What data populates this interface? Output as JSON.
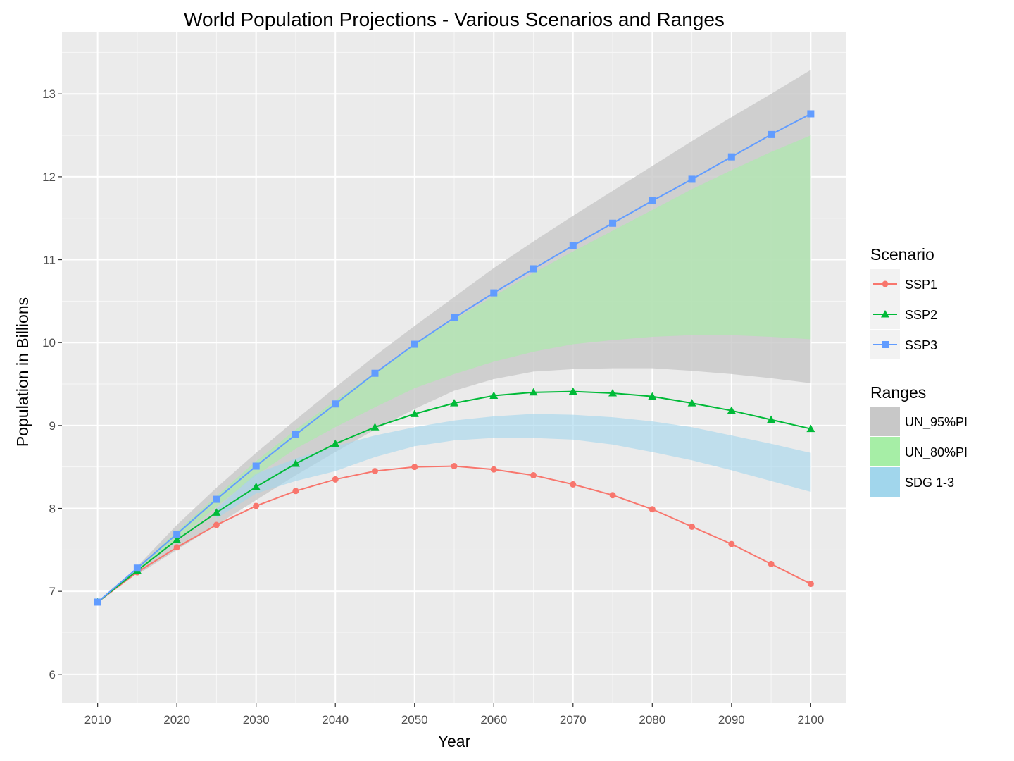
{
  "chart_data": {
    "type": "line",
    "title": "World Population Projections - Various Scenarios and Ranges",
    "xlabel": "Year",
    "ylabel": "Population in Billions",
    "xlim": [
      2005.5,
      2104.5
    ],
    "ylim": [
      5.65,
      13.75
    ],
    "x_ticks": [
      2010,
      2020,
      2030,
      2040,
      2050,
      2060,
      2070,
      2080,
      2090,
      2100
    ],
    "y_ticks": [
      6,
      7,
      8,
      9,
      10,
      11,
      12,
      13
    ],
    "grid": true,
    "legend_position": "right",
    "x": [
      2010,
      2015,
      2020,
      2025,
      2030,
      2035,
      2040,
      2045,
      2050,
      2055,
      2060,
      2065,
      2070,
      2075,
      2080,
      2085,
      2090,
      2095,
      2100
    ],
    "series": [
      {
        "name": "SSP1",
        "color": "#F8766D",
        "marker": "circle",
        "values": [
          6.87,
          7.23,
          7.53,
          7.8,
          8.03,
          8.21,
          8.35,
          8.45,
          8.5,
          8.51,
          8.47,
          8.4,
          8.29,
          8.16,
          7.99,
          7.78,
          7.57,
          7.33,
          7.09
        ]
      },
      {
        "name": "SSP2",
        "color": "#00BA38",
        "marker": "triangle",
        "values": [
          6.87,
          7.25,
          7.62,
          7.95,
          8.26,
          8.54,
          8.78,
          8.98,
          9.14,
          9.27,
          9.36,
          9.4,
          9.41,
          9.39,
          9.35,
          9.27,
          9.18,
          9.07,
          8.96
        ]
      },
      {
        "name": "SSP3",
        "color": "#619CFF",
        "marker": "square",
        "values": [
          6.87,
          7.28,
          7.69,
          8.11,
          8.51,
          8.89,
          9.26,
          9.63,
          9.98,
          10.3,
          10.6,
          10.89,
          11.17,
          11.44,
          11.71,
          11.97,
          12.24,
          12.51,
          12.76
        ]
      }
    ],
    "ranges": [
      {
        "name": "UN_95%PI",
        "color": "#c8c8c8",
        "fill": "#d4d4d4",
        "x": [
          2015,
          2020,
          2025,
          2030,
          2035,
          2040,
          2045,
          2050,
          2055,
          2060,
          2065,
          2070,
          2075,
          2080,
          2085,
          2090,
          2095,
          2100
        ],
        "upper": [
          7.3,
          7.8,
          8.25,
          8.67,
          9.07,
          9.46,
          9.84,
          10.2,
          10.55,
          10.9,
          11.22,
          11.53,
          11.83,
          12.13,
          12.43,
          12.72,
          13.0,
          13.29
        ],
        "lower": [
          7.2,
          7.5,
          7.8,
          8.1,
          8.4,
          8.68,
          8.95,
          9.2,
          9.42,
          9.56,
          9.65,
          9.68,
          9.69,
          9.69,
          9.66,
          9.62,
          9.57,
          9.51
        ]
      },
      {
        "name": "UN_80%PI",
        "color": "#a6eea6",
        "fill": "#bde4bd",
        "x": [
          2015,
          2020,
          2025,
          2030,
          2035,
          2040,
          2045,
          2050,
          2055,
          2060,
          2065,
          2070,
          2075,
          2080,
          2085,
          2090,
          2095,
          2100
        ],
        "upper": [
          7.28,
          7.72,
          8.15,
          8.57,
          8.95,
          9.3,
          9.64,
          9.98,
          10.28,
          10.56,
          10.84,
          11.1,
          11.35,
          11.6,
          11.85,
          12.08,
          12.3,
          12.5
        ],
        "lower": [
          7.24,
          7.62,
          8.02,
          8.4,
          8.72,
          8.98,
          9.22,
          9.45,
          9.62,
          9.77,
          9.89,
          9.98,
          10.03,
          10.07,
          10.09,
          10.09,
          10.07,
          10.04
        ]
      },
      {
        "name": "SDG 1-3",
        "color": "#a1d6ec",
        "fill": "#c2dfea",
        "x": [
          2025,
          2030,
          2035,
          2040,
          2045,
          2050,
          2055,
          2060,
          2065,
          2070,
          2075,
          2080,
          2085,
          2090,
          2095,
          2100
        ],
        "upper": [
          8.0,
          8.42,
          8.6,
          8.75,
          8.88,
          8.98,
          9.06,
          9.11,
          9.14,
          9.13,
          9.1,
          9.05,
          8.98,
          8.88,
          8.78,
          8.67
        ],
        "lower": [
          7.88,
          8.18,
          8.33,
          8.45,
          8.62,
          8.75,
          8.82,
          8.85,
          8.85,
          8.83,
          8.77,
          8.68,
          8.58,
          8.46,
          8.33,
          8.2
        ]
      }
    ],
    "legend": {
      "scenario_title": "Scenario",
      "ranges_title": "Ranges"
    },
    "panel_background": "#ebebeb"
  }
}
